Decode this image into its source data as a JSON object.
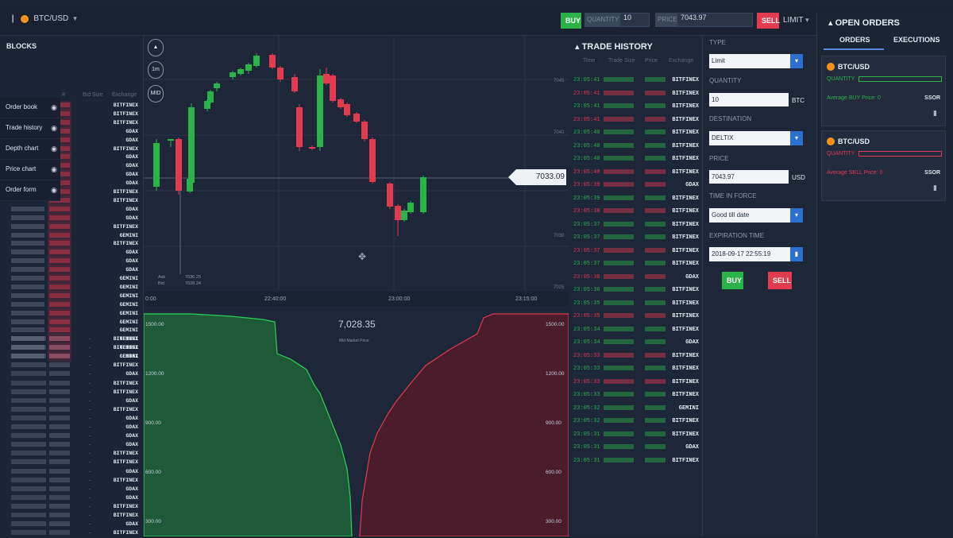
{
  "header": {
    "pair": "BTC/USD",
    "buy": "BUY",
    "quantity_label": "QUANTITY",
    "quantity": "10",
    "price_label": "PRICE",
    "price": "7043.97",
    "sell": "SELL",
    "order_type": "LIMIT"
  },
  "blocks": {
    "title": "BLOCKS",
    "menu": [
      "Order book",
      "Trade history",
      "Depth chart",
      "Price chart",
      "Order form"
    ],
    "headers": [
      "#",
      "Bid Size",
      "Exchange"
    ],
    "asks_exchanges": [
      "BITFINEX",
      "BITFINEX",
      "BITFINEX",
      "GDAX",
      "GDAX",
      "BITFINEX",
      "GDAX",
      "GDAX",
      "GDAX",
      "GDAX",
      "BITFINEX",
      "BITFINEX",
      "GDAX",
      "GDAX",
      "BITFINEX",
      "GEMINI",
      "BITFINEX",
      "GDAX",
      "GDAX",
      "GDAX",
      "GEMINI",
      "GEMINI",
      "GEMINI",
      "GEMINI",
      "GEMINI",
      "GEMINI",
      "GEMINI",
      "GEMINI",
      "GEMINI",
      "GEMINI"
    ],
    "bids_exchanges": [
      "BITFINEX",
      "BITFINEX",
      "GDAX",
      "BITFINEX",
      "GDAX",
      "BITFINEX",
      "BITFINEX",
      "GDAX",
      "BITFINEX",
      "GDAX",
      "GDAX",
      "GDAX",
      "GDAX",
      "BITFINEX",
      "BITFINEX",
      "GDAX",
      "BITFINEX",
      "GDAX",
      "GDAX",
      "BITFINEX",
      "BITFINEX",
      "GDAX",
      "BITFINEX"
    ]
  },
  "chart": {
    "price_tag": "7033.09",
    "controls": [
      "1m",
      "MID"
    ],
    "x_ticks": [
      "0:00",
      "22:40:00",
      "23:00:00",
      "23:15:00"
    ],
    "y_ticks": [
      "7045",
      "7040",
      "7035",
      "7030",
      "7025"
    ],
    "crosshair_labels": [
      "Ask",
      "Bid",
      "7036.25",
      "7028.34"
    ]
  },
  "depth": {
    "mid_price": "7,028.35",
    "mid_label": "Mid Market Price",
    "y_left": [
      "1500.00",
      "1200.00",
      "900.00",
      "600.00",
      "300.00"
    ],
    "y_right": [
      "1500.00",
      "1200.00",
      "900.00",
      "600.00",
      "300.00"
    ]
  },
  "history": {
    "title": "TRADE HISTORY",
    "headers": [
      "Time",
      "Trade Size",
      "Price",
      "Exchange"
    ],
    "times": [
      "23:05:41",
      "23:05:41",
      "23:05:41",
      "23:05:41",
      "23:05:40",
      "23:05:40",
      "23:05:40",
      "23:05:40",
      "23:05:39",
      "23:05:39",
      "23:05:38",
      "23:05:37",
      "23:05:37",
      "23:05:37",
      "23:05:37",
      "23:05:36",
      "23:05:36",
      "23:05:35",
      "23:05:35",
      "23:05:34",
      "23:05:34",
      "23:05:33",
      "23:05:33",
      "23:05:33",
      "23:05:33",
      "23:05:32",
      "23:05:32",
      "23:05:31",
      "23:05:31",
      "23:05:31"
    ],
    "exchanges": [
      "BITFINEX",
      "BITFINEX",
      "BITFINEX",
      "BITFINEX",
      "BITFINEX",
      "BITFINEX",
      "BITFINEX",
      "BITFINEX",
      "GDAX",
      "BITFINEX",
      "BITFINEX",
      "BITFINEX",
      "BITFINEX",
      "BITFINEX",
      "BITFINEX",
      "GDAX",
      "BITFINEX",
      "BITFINEX",
      "BITFINEX",
      "BITFINEX",
      "GDAX",
      "BITFINEX",
      "BITFINEX",
      "BITFINEX",
      "BITFINEX",
      "GEMINI",
      "BITFINEX",
      "BITFINEX",
      "GDAX",
      "BITFINEX"
    ],
    "sides": [
      "buy",
      "sell",
      "buy",
      "sell",
      "buy",
      "buy",
      "buy",
      "sell",
      "sell",
      "buy",
      "sell",
      "buy",
      "buy",
      "sell",
      "buy",
      "sell",
      "buy",
      "buy",
      "sell",
      "buy",
      "buy",
      "sell",
      "buy",
      "sell",
      "buy",
      "buy",
      "buy",
      "buy",
      "buy",
      "buy"
    ]
  },
  "form": {
    "type_label": "TYPE",
    "type": "Limit",
    "quantity_label": "QUANTITY",
    "quantity": "10",
    "quantity_unit": "BTC",
    "destination_label": "DESTINATION",
    "destination": "DELTIX",
    "price_label": "PRICE",
    "price": "7043.97",
    "price_unit": "USD",
    "tif_label": "TIME IN FORCE",
    "tif": "Good till date",
    "expiration_label": "EXPIRATION TIME",
    "expiration": "2018-09-17 22:55:19",
    "buy": "BUY",
    "sell": "SELL"
  },
  "orders": {
    "title": "OPEN ORDERS",
    "tabs": [
      "ORDERS",
      "EXECUTIONS"
    ],
    "cards": [
      {
        "pair": "BTC/USD",
        "qty_label": "QUANTITY",
        "avg": "Average BUY Price: 0",
        "sor": "SSOR",
        "side_color": "#2bb34a"
      },
      {
        "pair": "BTC/USD",
        "qty_label": "QUANTITY",
        "avg": "Average SELL Price: 0",
        "sor": "SSOR",
        "side_color": "#e23a4e"
      }
    ]
  },
  "colors": {
    "buy": "#2bb34a",
    "sell": "#e23a4e",
    "accent": "#2d6fd0"
  }
}
